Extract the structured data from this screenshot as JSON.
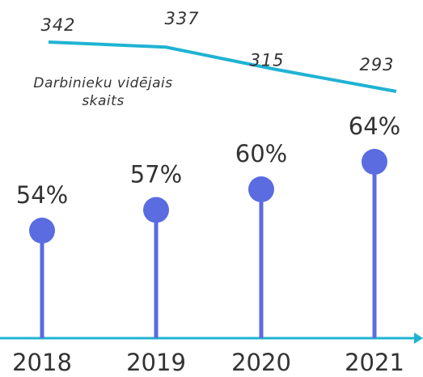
{
  "chart_data": [
    {
      "type": "line",
      "label": "Darbinieku vidējais skaits",
      "values": [
        342,
        337,
        315,
        293
      ],
      "color": "#1fb3d3"
    },
    {
      "type": "lollipop",
      "categories": [
        "2018",
        "2019",
        "2020",
        "2021"
      ],
      "values": [
        54,
        57,
        60,
        64
      ],
      "value_labels": [
        "54%",
        "57%",
        "60%",
        "64%"
      ],
      "color": "#5a6ce0",
      "axis_color": "#1fb3d3"
    }
  ]
}
